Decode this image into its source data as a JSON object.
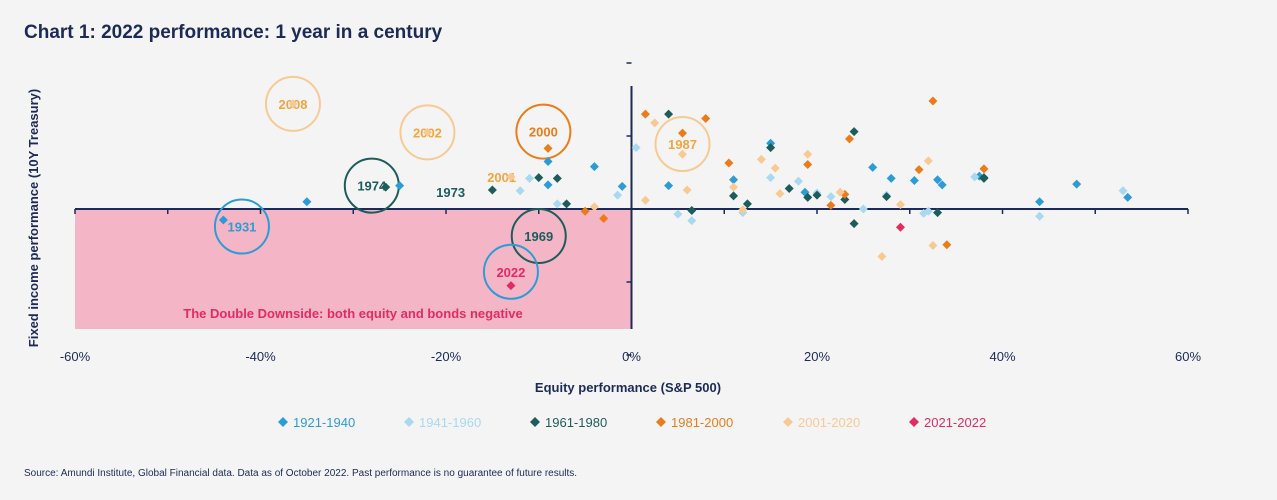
{
  "chart_data": {
    "type": "scatter",
    "title": "Chart 1: 2022 performance: 1 year in a century",
    "xlabel": "Equity performance (S&P 500)",
    "ylabel": "Fixed income performance (10Y Treasury)",
    "xlim": [
      -60,
      60
    ],
    "x_ticks": [
      "-60%",
      "-40%",
      "-20%",
      "0%",
      "20%",
      "40%",
      "60%"
    ],
    "ylim": [
      -17,
      18
    ],
    "y_ticks_visible": false,
    "grid": false,
    "legend_position": "bottom",
    "region_label": "The Double Downside: both equity and bonds negative",
    "source": "Source: Amundi Institute, Global Financial data. Data as of October 2022. Past performance is no guarantee of future results.",
    "colors": {
      "1921-1940": "#2d9cd6",
      "1941-1960": "#a9d8f1",
      "1961-1980": "#1c5c5a",
      "1981-2000": "#ea7d1a",
      "2001-2020": "#f8ca93",
      "2021-2022": "#e12c62",
      "region": "#f4b6c6",
      "region_text": "#e12c62",
      "axis": "#1b2a56"
    },
    "series": [
      {
        "name": "1921-1940",
        "points": [
          [
            -44,
            -1.5
          ],
          [
            -35,
            1
          ],
          [
            -25,
            3.2
          ],
          [
            -9,
            6.5
          ],
          [
            -9,
            3.3
          ],
          [
            -4,
            5.8
          ],
          [
            -1,
            3.1
          ],
          [
            4,
            3.2
          ],
          [
            11,
            4
          ],
          [
            15,
            9
          ],
          [
            18.7,
            2.3
          ],
          [
            26,
            5.7
          ],
          [
            28,
            4.2
          ],
          [
            30.5,
            3.9
          ],
          [
            33,
            4
          ],
          [
            33.5,
            3.3
          ],
          [
            37.5,
            4.5
          ],
          [
            44,
            1
          ],
          [
            48,
            3.4
          ],
          [
            53.5,
            1.6
          ]
        ]
      },
      {
        "name": "1941-1960",
        "points": [
          [
            -12,
            2.5
          ],
          [
            -11,
            4.2
          ],
          [
            -8,
            0.7
          ],
          [
            -1.5,
            1.9
          ],
          [
            0.5,
            8.4
          ],
          [
            5,
            -0.7
          ],
          [
            6.5,
            -1.6
          ],
          [
            12,
            -0.5
          ],
          [
            15,
            4.3
          ],
          [
            18,
            3.8
          ],
          [
            20,
            2.2
          ],
          [
            21.5,
            1.7
          ],
          [
            25,
            0
          ],
          [
            27.5,
            1.9
          ],
          [
            31.5,
            -0.6
          ],
          [
            32,
            -0.3
          ],
          [
            37,
            4.4
          ],
          [
            44,
            -1
          ],
          [
            53,
            2.5
          ]
        ]
      },
      {
        "name": "1961-1980",
        "points": [
          [
            -26.5,
            3
          ],
          [
            -15,
            2.6
          ],
          [
            -10,
            4.3
          ],
          [
            -8,
            4.2
          ],
          [
            -7,
            0.7
          ],
          [
            4,
            13
          ],
          [
            6.5,
            -0.2
          ],
          [
            11,
            1.8
          ],
          [
            12.5,
            0.7
          ],
          [
            15,
            8.4
          ],
          [
            17,
            2.8
          ],
          [
            19,
            1.6
          ],
          [
            20,
            1.9
          ],
          [
            23,
            1.3
          ],
          [
            24,
            10.6
          ],
          [
            24,
            -2
          ],
          [
            27.5,
            1.7
          ],
          [
            33,
            -0.5
          ],
          [
            38,
            4.2
          ],
          [
            38,
            4.3
          ]
        ]
      },
      {
        "name": "1981-2000",
        "points": [
          [
            -9,
            8.3
          ],
          [
            -5,
            -0.3
          ],
          [
            -3,
            -1.3
          ],
          [
            1.5,
            13
          ],
          [
            5.5,
            10.4
          ],
          [
            8,
            12.4
          ],
          [
            10.5,
            6.3
          ],
          [
            19,
            6.1
          ],
          [
            21.5,
            0.5
          ],
          [
            23,
            2
          ],
          [
            23.5,
            9.6
          ],
          [
            31,
            5.4
          ],
          [
            32.5,
            14.8
          ],
          [
            34,
            -4.9
          ],
          [
            38,
            5.5
          ]
        ]
      },
      {
        "name": "2001-2020",
        "points": [
          [
            -36.5,
            14.4
          ],
          [
            -22,
            10.5
          ],
          [
            -13,
            4.4
          ],
          [
            -4,
            0.3
          ],
          [
            1.5,
            1.2
          ],
          [
            2.5,
            11.8
          ],
          [
            5.5,
            7.5
          ],
          [
            6,
            2.6
          ],
          [
            11,
            3
          ],
          [
            12,
            -0.1
          ],
          [
            14,
            6.8
          ],
          [
            15.5,
            5.6
          ],
          [
            16,
            2.1
          ],
          [
            19,
            7.5
          ],
          [
            22.5,
            2.3
          ],
          [
            27,
            -6.5
          ],
          [
            29,
            0.6
          ],
          [
            32,
            6.6
          ],
          [
            32.5,
            -5
          ]
        ]
      },
      {
        "name": "2021-2022",
        "points": [
          [
            -13,
            -10.5
          ],
          [
            29,
            -2.5
          ]
        ]
      }
    ],
    "annotations": [
      {
        "label": "2008",
        "x": -36.5,
        "y": 14.4,
        "circle_color": "#f8ca93",
        "text_color": "#f2a640"
      },
      {
        "label": "2002",
        "x": -22,
        "y": 10.5,
        "circle_color": "#f8ca93",
        "text_color": "#f2a640"
      },
      {
        "label": "2000",
        "x": -9.5,
        "y": 10.6,
        "circle_color": "#ea7d1a",
        "text_color": "#ea7d1a"
      },
      {
        "label": "1987",
        "x": 5.5,
        "y": 8.9,
        "circle_color": "#f8ca93",
        "text_color": "#f2a640"
      },
      {
        "label": "1974",
        "x": -28,
        "y": 3.2,
        "circle_color": "#1c5c5a",
        "text_color": "#1c5c5a"
      },
      {
        "label": "1931",
        "x": -42,
        "y": -2.4,
        "circle_color": "#2d9cd6",
        "text_color": "#2d9cd6"
      },
      {
        "label": "1969",
        "x": -10,
        "y": -3.7,
        "circle_color": "#1c5c5a",
        "text_color": "#1c5c5a"
      },
      {
        "label": "2022",
        "x": -13,
        "y": -8.6,
        "circle_color": "#2d9cd6",
        "text_color": "#e12c62"
      },
      {
        "label": "1973",
        "text_x": -19.5,
        "text_y": 2.3,
        "text_color": "#1c5c5a"
      },
      {
        "label": "2001",
        "text_x": -14,
        "text_y": 4.4,
        "text_color": "#f2a640"
      }
    ]
  }
}
